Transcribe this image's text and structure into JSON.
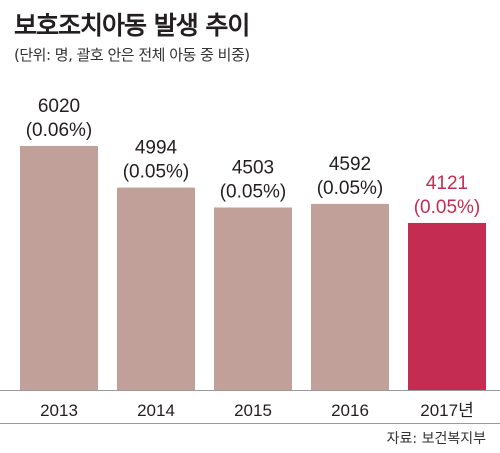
{
  "header": {
    "title": "보호조치아동 발생 추이",
    "subtitle": "(단위: 명, 괄호 안은 전체 아동 중 비중)"
  },
  "footer": {
    "source": "자료: 보건복지부"
  },
  "colors": {
    "bar": "#c0a098",
    "highlight_bar": "#c42c52",
    "text": "#231f20",
    "axis": "#9a9a9a"
  },
  "chart_data": {
    "type": "bar",
    "categories": [
      "2013",
      "2014",
      "2015",
      "2016",
      "2017년"
    ],
    "values": [
      6020,
      4994,
      4503,
      4592,
      4121
    ],
    "shares": [
      "(0.06%)",
      "(0.05%)",
      "(0.05%)",
      "(0.05%)",
      "(0.05%)"
    ],
    "highlight_index": 4,
    "title": "보호조치아동 발생 추이",
    "xlabel": "",
    "ylabel": "",
    "ylim": [
      0,
      6020
    ],
    "grid": false,
    "legend": "none"
  }
}
